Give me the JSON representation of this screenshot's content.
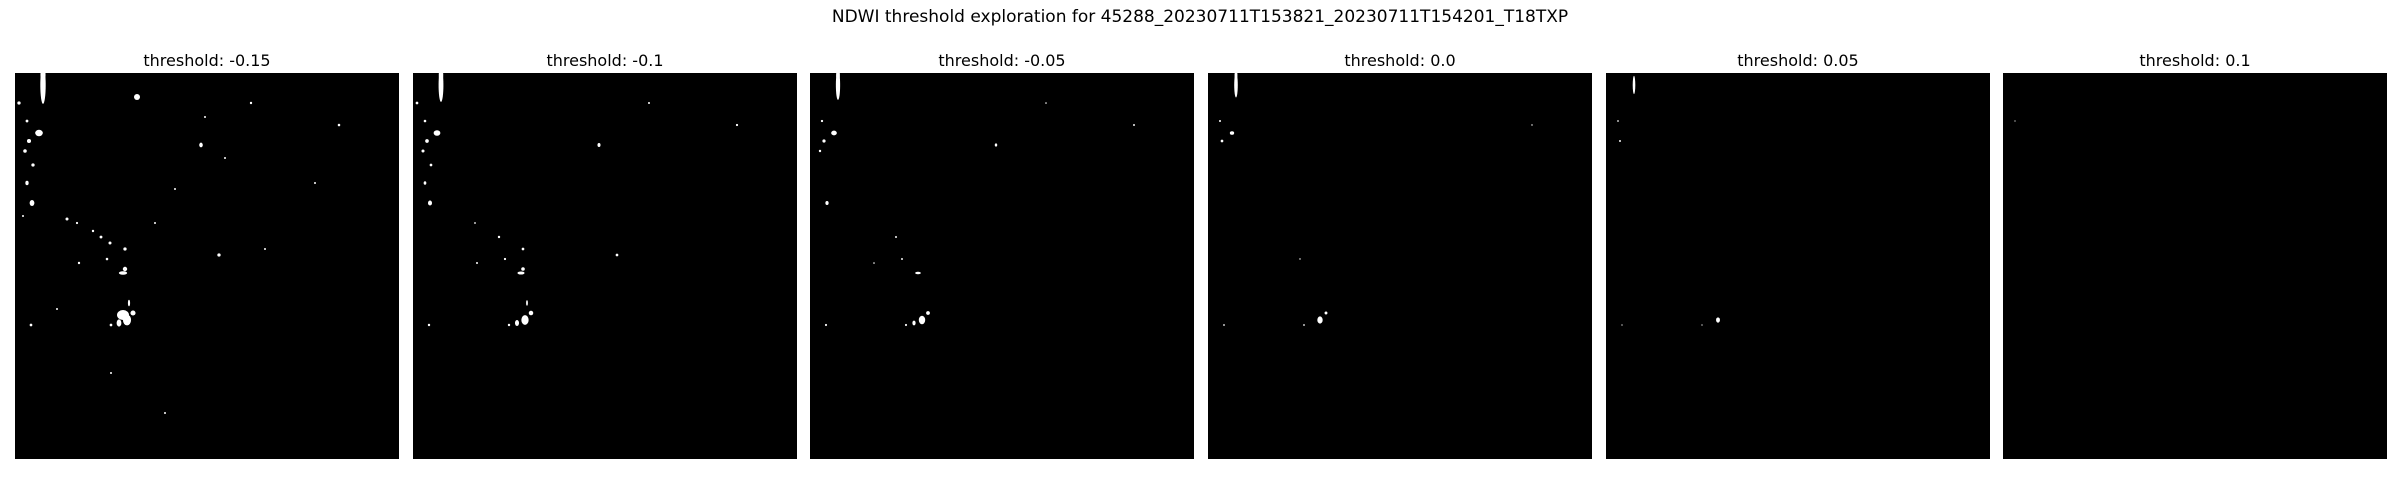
{
  "figure": {
    "suptitle": "NDWI threshold exploration for 45288_20230711T153821_20230711T154201_T18TXP"
  },
  "panels": [
    {
      "title": "threshold: -0.15",
      "threshold": -0.15,
      "mask_level": 1.0
    },
    {
      "title": "threshold: -0.1",
      "threshold": -0.1,
      "mask_level": 0.8
    },
    {
      "title": "threshold: -0.05",
      "threshold": -0.05,
      "mask_level": 0.62
    },
    {
      "title": "threshold: 0.0",
      "threshold": 0.0,
      "mask_level": 0.45
    },
    {
      "title": "threshold: 0.05",
      "threshold": 0.05,
      "mask_level": 0.3
    },
    {
      "title": "threshold: 0.1",
      "threshold": 0.1,
      "mask_level": 0.18
    }
  ],
  "colors": {
    "water": "#ffffff",
    "non_water": "#000000"
  }
}
